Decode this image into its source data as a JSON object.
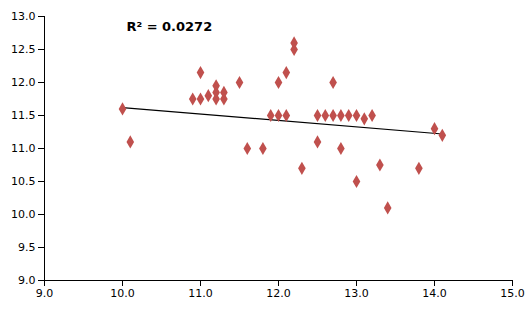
{
  "chart_data": {
    "type": "scatter",
    "x": [
      10.0,
      10.1,
      10.9,
      11.0,
      11.0,
      11.1,
      11.2,
      11.2,
      11.2,
      11.3,
      11.3,
      11.5,
      11.6,
      11.8,
      11.9,
      12.0,
      12.0,
      12.1,
      12.1,
      12.2,
      12.2,
      12.3,
      12.5,
      12.5,
      12.6,
      12.7,
      12.7,
      12.8,
      12.8,
      12.9,
      13.0,
      13.0,
      13.1,
      13.2,
      13.3,
      13.4,
      13.8,
      14.0,
      14.1
    ],
    "values": [
      11.6,
      11.1,
      11.75,
      11.75,
      12.15,
      11.8,
      11.75,
      11.85,
      11.95,
      11.75,
      11.85,
      12.0,
      11.0,
      11.0,
      11.5,
      11.5,
      12.0,
      11.5,
      12.15,
      12.5,
      12.6,
      10.7,
      11.5,
      11.1,
      11.5,
      12.0,
      11.5,
      11.0,
      11.5,
      11.5,
      11.5,
      10.5,
      11.45,
      11.5,
      10.75,
      10.1,
      10.7,
      11.3,
      11.2
    ],
    "color": "#C0504D",
    "marker": "diamond",
    "trend_line": {
      "x": [
        10.0,
        14.1
      ],
      "values": [
        11.62,
        11.22
      ],
      "color": "#000000"
    },
    "annotations": [
      {
        "text": "R² = 0.0272",
        "x": 10.05,
        "y": 12.92
      }
    ],
    "xlim": [
      9.0,
      15.0
    ],
    "ylim": [
      9.0,
      13.0
    ],
    "xticks": [
      {
        "value": 9,
        "label": "9.0"
      },
      {
        "value": 10,
        "label": "10.0"
      },
      {
        "value": 11,
        "label": "11.0"
      },
      {
        "value": 12,
        "label": "12.0"
      },
      {
        "value": 13,
        "label": "13.0"
      },
      {
        "value": 14,
        "label": "14.0"
      },
      {
        "value": 15,
        "label": "15.0"
      }
    ],
    "yticks": [
      {
        "value": 9,
        "label": "9.0"
      },
      9.5,
      {
        "value": 10,
        "label": "10.0"
      },
      10.5,
      {
        "value": 11,
        "label": "11.0"
      },
      11.5,
      {
        "value": 12,
        "label": "12.0"
      },
      12.5,
      {
        "value": 13,
        "label": "13.0"
      }
    ],
    "grid": false
  }
}
